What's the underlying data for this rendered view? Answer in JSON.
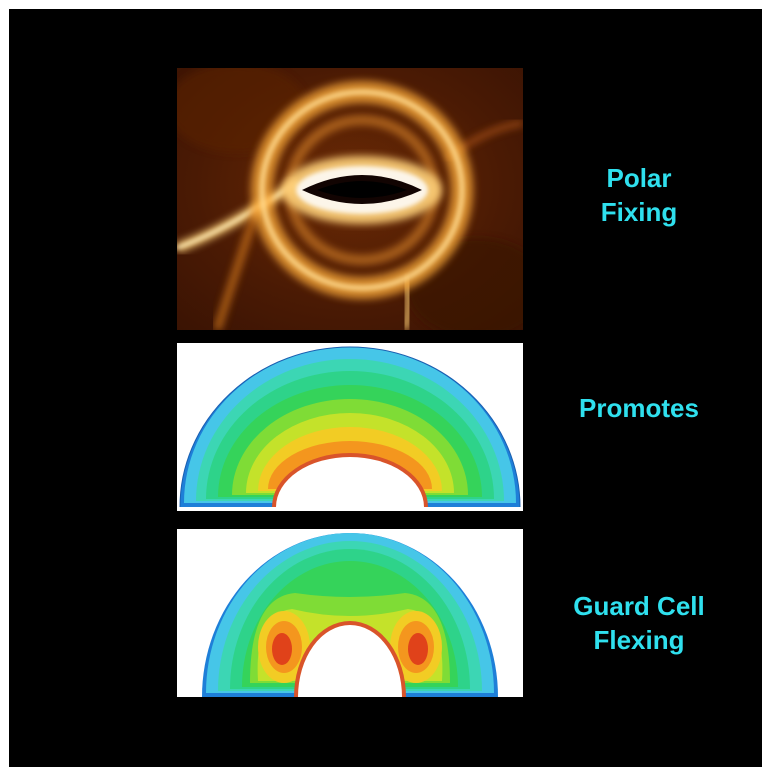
{
  "labels": {
    "polar": [
      "Polar",
      "Fixing"
    ],
    "promotes": "Promotes",
    "guard": [
      "Guard Cell",
      "Flexing"
    ]
  },
  "colors": {
    "label": "#2fe0ee",
    "background": "#000000",
    "micrograph_glow": "#ffc15a",
    "contour_outer": "#31c9e6",
    "contour_mid": "#2fd36b",
    "contour_inner": "#f08a1e",
    "contour_hot": "#e0421a"
  }
}
